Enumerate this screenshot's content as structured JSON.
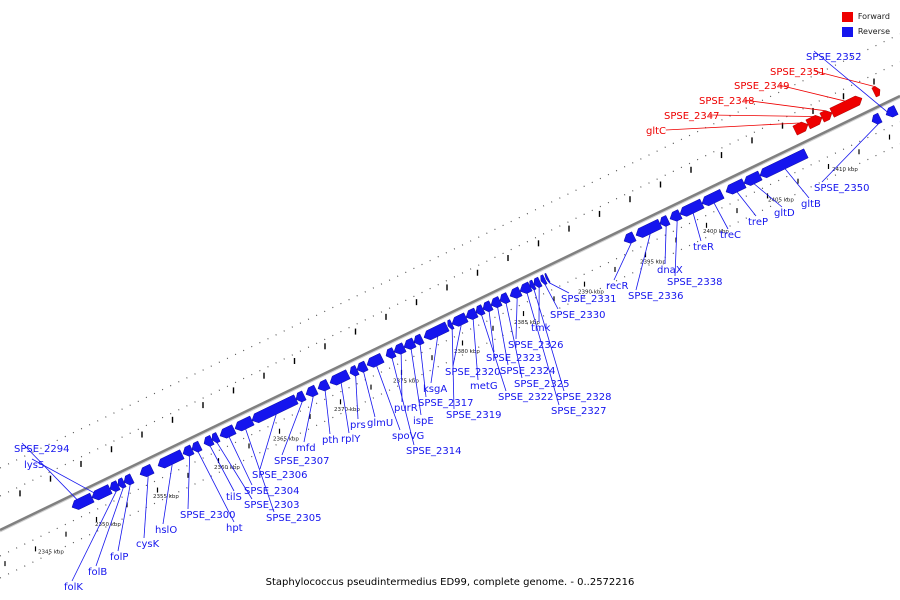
{
  "caption": "Staphylococcus pseudintermedius ED99, complete genome. - 0..2572216",
  "legend": [
    {
      "label": "Forward",
      "color": "#ee0000"
    },
    {
      "label": "Reverse",
      "color": "#1515ee"
    }
  ],
  "colors": {
    "forward": "#ee0000",
    "reverse": "#1515ee",
    "backbone": "#808080",
    "tick": "#000000"
  },
  "scale": {
    "labels": [
      "2345 kbp",
      "2350 kbp",
      "2355 kbp",
      "2360 kbp",
      "2365 kbp",
      "2370 kbp",
      "2375 kbp",
      "2380 kbp",
      "2385 kbp",
      "2390 kbp",
      "2395 kbp",
      "2400 kbp",
      "2405 kbp",
      "2410 kbp"
    ]
  },
  "genes": [
    {
      "name": "SPSE_2294",
      "strand": "reverse"
    },
    {
      "name": "lysS",
      "strand": "reverse"
    },
    {
      "name": "folK",
      "strand": "reverse"
    },
    {
      "name": "folB",
      "strand": "reverse"
    },
    {
      "name": "folP",
      "strand": "reverse"
    },
    {
      "name": "cysK",
      "strand": "reverse"
    },
    {
      "name": "hslO",
      "strand": "reverse"
    },
    {
      "name": "SPSE_2300",
      "strand": "reverse"
    },
    {
      "name": "hpt",
      "strand": "reverse"
    },
    {
      "name": "tilS",
      "strand": "reverse"
    },
    {
      "name": "SPSE_2303",
      "strand": "reverse"
    },
    {
      "name": "SPSE_2304",
      "strand": "reverse"
    },
    {
      "name": "SPSE_2305",
      "strand": "reverse"
    },
    {
      "name": "SPSE_2306",
      "strand": "reverse"
    },
    {
      "name": "SPSE_2307",
      "strand": "reverse"
    },
    {
      "name": "mfd",
      "strand": "reverse"
    },
    {
      "name": "pth",
      "strand": "reverse"
    },
    {
      "name": "rplY",
      "strand": "reverse"
    },
    {
      "name": "prs",
      "strand": "reverse"
    },
    {
      "name": "glmU",
      "strand": "reverse"
    },
    {
      "name": "spoVG",
      "strand": "reverse"
    },
    {
      "name": "SPSE_2314",
      "strand": "reverse"
    },
    {
      "name": "purR",
      "strand": "reverse"
    },
    {
      "name": "ispE",
      "strand": "reverse"
    },
    {
      "name": "SPSE_2317",
      "strand": "reverse"
    },
    {
      "name": "ksgA",
      "strand": "reverse"
    },
    {
      "name": "SPSE_2319",
      "strand": "reverse"
    },
    {
      "name": "SPSE_2320",
      "strand": "reverse"
    },
    {
      "name": "metG",
      "strand": "reverse"
    },
    {
      "name": "SPSE_2322",
      "strand": "reverse"
    },
    {
      "name": "SPSE_2323",
      "strand": "reverse"
    },
    {
      "name": "SPSE_2324",
      "strand": "reverse"
    },
    {
      "name": "SPSE_2325",
      "strand": "reverse"
    },
    {
      "name": "SPSE_2326",
      "strand": "reverse"
    },
    {
      "name": "SPSE_2327",
      "strand": "reverse"
    },
    {
      "name": "SPSE_2328",
      "strand": "reverse"
    },
    {
      "name": "tmk",
      "strand": "reverse"
    },
    {
      "name": "SPSE_2330",
      "strand": "reverse"
    },
    {
      "name": "SPSE_2331",
      "strand": "reverse"
    },
    {
      "name": "recR",
      "strand": "reverse"
    },
    {
      "name": "SPSE_2336",
      "strand": "reverse"
    },
    {
      "name": "dnaX",
      "strand": "reverse"
    },
    {
      "name": "SPSE_2338",
      "strand": "reverse"
    },
    {
      "name": "treR",
      "strand": "reverse"
    },
    {
      "name": "treC",
      "strand": "reverse"
    },
    {
      "name": "treP",
      "strand": "reverse"
    },
    {
      "name": "gltD",
      "strand": "reverse"
    },
    {
      "name": "gltB",
      "strand": "reverse"
    },
    {
      "name": "SPSE_2350",
      "strand": "reverse"
    },
    {
      "name": "gltC",
      "strand": "forward"
    },
    {
      "name": "SPSE_2347",
      "strand": "forward"
    },
    {
      "name": "SPSE_2348",
      "strand": "forward"
    },
    {
      "name": "SPSE_2349",
      "strand": "forward"
    },
    {
      "name": "SPSE_2351",
      "strand": "forward"
    },
    {
      "name": "SPSE_2352",
      "strand": "reverse"
    }
  ]
}
